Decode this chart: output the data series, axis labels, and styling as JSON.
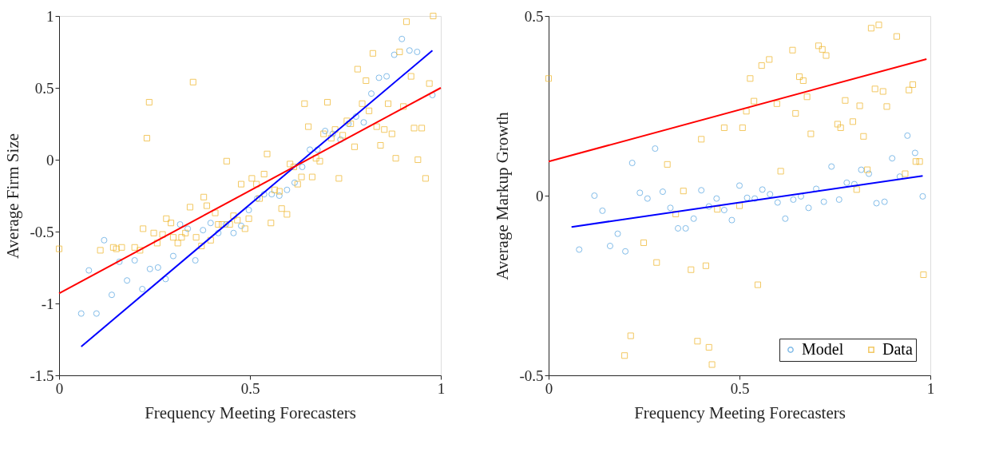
{
  "chart_data": [
    {
      "type": "scatter",
      "xlabel": "Frequency Meeting Forecasters",
      "ylabel": "Average Firm Size",
      "xlim": [
        0,
        1
      ],
      "ylim": [
        -1.5,
        1
      ],
      "xticks": [
        0,
        0.5,
        1
      ],
      "yticks": [
        -1.5,
        -1,
        -0.5,
        0,
        0.5,
        1
      ],
      "grid": false,
      "legend": false,
      "series": [
        {
          "color": "#4d9fde",
          "marker": "circle",
          "x": [
            0.058,
            0.098,
            0.078,
            0.118,
            0.138,
            0.158,
            0.178,
            0.198,
            0.218,
            0.238,
            0.259,
            0.279,
            0.299,
            0.317,
            0.337,
            0.357,
            0.377,
            0.397,
            0.417,
            0.437,
            0.457,
            0.477,
            0.497,
            0.519,
            0.537,
            0.557,
            0.577,
            0.597,
            0.617,
            0.637,
            0.657,
            0.677,
            0.697,
            0.717,
            0.737,
            0.758,
            0.778,
            0.798,
            0.818,
            0.838,
            0.858,
            0.878,
            0.898,
            0.918,
            0.938,
            0.978
          ],
          "values": [
            -1.07,
            -1.07,
            -0.77,
            -0.56,
            -0.94,
            -0.71,
            -0.84,
            -0.7,
            -0.9,
            -0.76,
            -0.75,
            -0.83,
            -0.67,
            -0.45,
            -0.48,
            -0.7,
            -0.49,
            -0.44,
            -0.51,
            -0.45,
            -0.51,
            -0.46,
            -0.35,
            -0.27,
            -0.24,
            -0.24,
            -0.25,
            -0.21,
            -0.16,
            -0.05,
            0.07,
            0.07,
            0.2,
            0.18,
            0.14,
            0.25,
            0.3,
            0.26,
            0.46,
            0.57,
            0.58,
            0.73,
            0.84,
            0.76,
            0.75,
            0.45
          ]
        },
        {
          "color": "#edb120",
          "marker": "square",
          "x": [
            0.0,
            0.108,
            0.142,
            0.15,
            0.164,
            0.198,
            0.212,
            0.22,
            0.23,
            0.236,
            0.248,
            0.257,
            0.271,
            0.281,
            0.293,
            0.299,
            0.311,
            0.321,
            0.331,
            0.343,
            0.351,
            0.359,
            0.373,
            0.379,
            0.387,
            0.397,
            0.409,
            0.417,
            0.427,
            0.439,
            0.447,
            0.457,
            0.467,
            0.477,
            0.487,
            0.497,
            0.505,
            0.517,
            0.525,
            0.537,
            0.545,
            0.555,
            0.565,
            0.577,
            0.583,
            0.597,
            0.605,
            0.615,
            0.625,
            0.635,
            0.643,
            0.653,
            0.663,
            0.673,
            0.683,
            0.693,
            0.703,
            0.713,
            0.723,
            0.733,
            0.743,
            0.754,
            0.764,
            0.774,
            0.782,
            0.794,
            0.804,
            0.812,
            0.822,
            0.832,
            0.842,
            0.852,
            0.862,
            0.872,
            0.882,
            0.892,
            0.902,
            0.91,
            0.922,
            0.93,
            0.94,
            0.95,
            0.96,
            0.97,
            0.98
          ],
          "values": [
            -0.62,
            -0.63,
            -0.61,
            -0.62,
            -0.61,
            -0.61,
            -0.63,
            -0.48,
            0.15,
            0.4,
            -0.51,
            -0.58,
            -0.52,
            -0.41,
            -0.44,
            -0.54,
            -0.58,
            -0.54,
            -0.51,
            -0.33,
            0.54,
            -0.54,
            -0.6,
            -0.26,
            -0.32,
            -0.56,
            -0.37,
            -0.45,
            -0.45,
            -0.01,
            -0.45,
            -0.39,
            -0.42,
            -0.17,
            -0.48,
            -0.41,
            -0.13,
            -0.17,
            -0.27,
            -0.1,
            0.04,
            -0.44,
            -0.21,
            -0.22,
            -0.34,
            -0.38,
            -0.03,
            -0.05,
            -0.17,
            -0.12,
            0.39,
            0.23,
            -0.12,
            0.01,
            -0.01,
            0.18,
            0.4,
            0.15,
            0.21,
            -0.13,
            0.17,
            0.27,
            0.25,
            0.09,
            0.63,
            0.39,
            0.55,
            0.34,
            0.74,
            0.23,
            0.1,
            0.21,
            0.39,
            0.18,
            0.01,
            0.75,
            0.37,
            0.96,
            0.58,
            0.22,
            0.0,
            0.22,
            -0.13,
            0.53,
            1.0
          ]
        },
        {
          "type": "line",
          "color": "#0000ff",
          "x": [
            0.058,
            0.978
          ],
          "values": [
            -1.3,
            0.76
          ]
        },
        {
          "type": "line",
          "color": "#ff0000",
          "x": [
            0,
            1
          ],
          "values": [
            -0.93,
            0.5
          ]
        }
      ]
    },
    {
      "type": "scatter",
      "xlabel": "Frequency Meeting Forecasters",
      "ylabel": "Average Markup Growth",
      "xlim": [
        0,
        1
      ],
      "ylim": [
        -0.5,
        0.5
      ],
      "xticks": [
        0,
        0.5,
        1
      ],
      "yticks": [
        -0.5,
        0,
        0.5
      ],
      "grid": false,
      "legend": "bottom right",
      "series": [
        {
          "name": "Model",
          "color": "#4d9fde",
          "marker": "circle",
          "x": [
            0.08,
            0.12,
            0.141,
            0.161,
            0.181,
            0.201,
            0.219,
            0.239,
            0.259,
            0.279,
            0.299,
            0.319,
            0.339,
            0.359,
            0.38,
            0.4,
            0.42,
            0.44,
            0.46,
            0.48,
            0.5,
            0.52,
            0.54,
            0.56,
            0.58,
            0.6,
            0.62,
            0.641,
            0.661,
            0.681,
            0.701,
            0.721,
            0.741,
            0.761,
            0.781,
            0.801,
            0.819,
            0.839,
            0.859,
            0.88,
            0.9,
            0.92,
            0.94,
            0.96,
            0.98
          ],
          "values": [
            -0.15,
            0.0,
            -0.042,
            -0.14,
            -0.106,
            -0.155,
            0.091,
            0.008,
            -0.008,
            0.131,
            0.011,
            -0.034,
            -0.091,
            -0.091,
            -0.064,
            0.015,
            -0.03,
            -0.008,
            -0.04,
            -0.068,
            0.028,
            -0.006,
            -0.008,
            0.017,
            0.004,
            -0.019,
            -0.064,
            -0.011,
            -0.002,
            -0.034,
            0.019,
            -0.017,
            0.081,
            -0.011,
            0.036,
            0.032,
            0.072,
            0.061,
            -0.021,
            -0.017,
            0.104,
            0.053,
            0.167,
            0.119,
            -0.002
          ]
        },
        {
          "name": "Data",
          "color": "#edb120",
          "marker": "square",
          "x": [
            0.0,
            0.199,
            0.215,
            0.249,
            0.283,
            0.311,
            0.333,
            0.353,
            0.373,
            0.39,
            0.4,
            0.412,
            0.42,
            0.428,
            0.442,
            0.46,
            0.5,
            0.508,
            0.518,
            0.528,
            0.538,
            0.548,
            0.558,
            0.578,
            0.598,
            0.608,
            0.639,
            0.647,
            0.657,
            0.667,
            0.677,
            0.687,
            0.707,
            0.717,
            0.727,
            0.757,
            0.765,
            0.777,
            0.797,
            0.807,
            0.815,
            0.825,
            0.835,
            0.845,
            0.855,
            0.865,
            0.876,
            0.886,
            0.912,
            0.934,
            0.944,
            0.954,
            0.962,
            0.972,
            0.982
          ],
          "values": [
            0.326,
            -0.445,
            -0.39,
            -0.131,
            -0.186,
            0.087,
            -0.051,
            0.013,
            -0.206,
            -0.405,
            0.157,
            -0.195,
            -0.422,
            -0.47,
            -0.038,
            0.189,
            -0.028,
            0.189,
            0.235,
            0.326,
            0.263,
            -0.248,
            0.362,
            0.379,
            0.256,
            0.068,
            0.405,
            0.229,
            0.331,
            0.32,
            0.275,
            0.172,
            0.417,
            0.407,
            0.39,
            0.199,
            0.189,
            0.265,
            0.206,
            0.017,
            0.25,
            0.165,
            0.072,
            0.466,
            0.297,
            0.475,
            0.29,
            0.248,
            0.443,
            0.061,
            0.294,
            0.309,
            0.095,
            0.095,
            -0.22
          ]
        },
        {
          "type": "line",
          "color": "#0000ff",
          "x": [
            0.06,
            0.98
          ],
          "values": [
            -0.087,
            0.055
          ]
        },
        {
          "type": "line",
          "color": "#ff0000",
          "x": [
            0,
            0.99
          ],
          "values": [
            0.095,
            0.38
          ]
        }
      ]
    }
  ]
}
